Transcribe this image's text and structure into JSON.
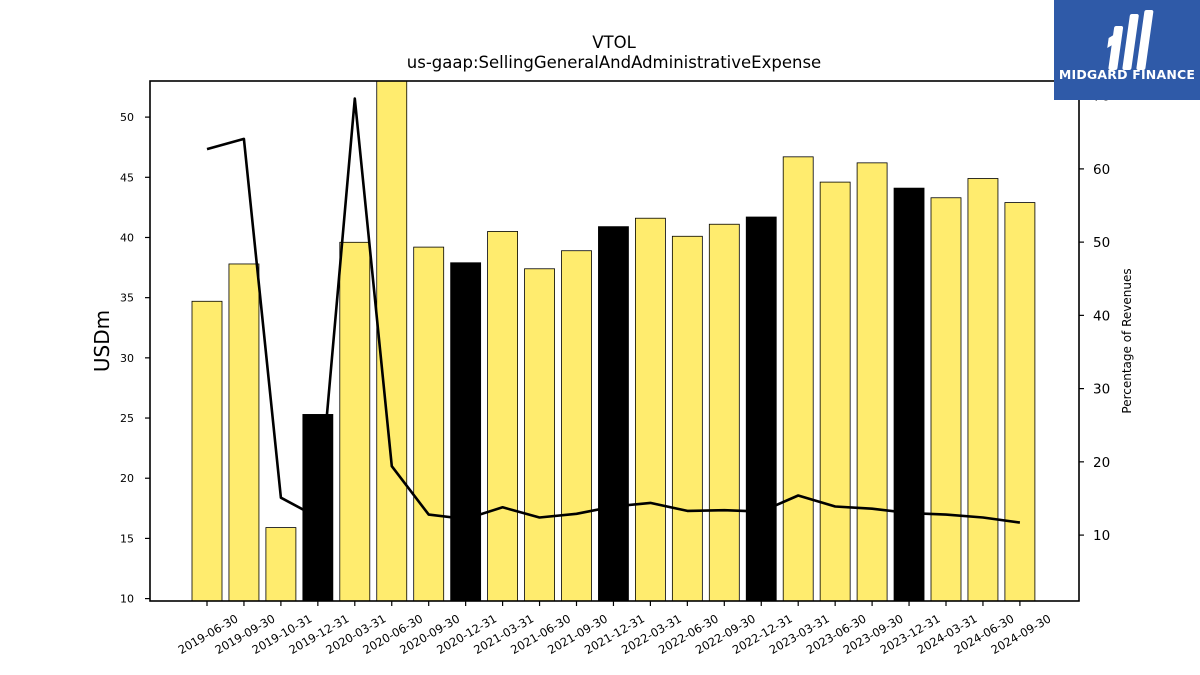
{
  "chart_data": {
    "type": "bar",
    "title": "VTOL",
    "subtitle": "us-gaap:SellingGeneralAndAdministrativeExpense",
    "ylabel": "USDm",
    "y2label": "Percentage of Revenues",
    "ylim": [
      9.8,
      53
    ],
    "y2lim": [
      1,
      72
    ],
    "yticks": [
      10,
      15,
      20,
      25,
      30,
      35,
      40,
      45,
      50
    ],
    "y2ticks": [
      10,
      20,
      30,
      40,
      50,
      60,
      70
    ],
    "categories": [
      "2019-06-30",
      "2019-09-30",
      "2019-10-31",
      "2019-12-31",
      "2020-03-31",
      "2020-06-30",
      "2020-09-30",
      "2020-12-31",
      "2021-03-31",
      "2021-06-30",
      "2021-09-30",
      "2021-12-31",
      "2022-03-31",
      "2022-06-30",
      "2022-09-30",
      "2022-12-31",
      "2023-03-31",
      "2023-06-30",
      "2023-09-30",
      "2023-12-31",
      "2024-03-31",
      "2024-06-30",
      "2024-09-30"
    ],
    "series": [
      {
        "type": "bar",
        "axis": "left",
        "values": [
          34.7,
          37.8,
          15.9,
          25.3,
          39.6,
          53.0,
          39.2,
          37.9,
          40.5,
          37.4,
          38.9,
          40.9,
          41.6,
          40.1,
          41.1,
          41.7,
          46.7,
          44.6,
          46.2,
          44.1,
          43.3,
          44.9,
          42.9
        ],
        "highlight": [
          false,
          false,
          false,
          true,
          false,
          false,
          false,
          true,
          false,
          false,
          false,
          true,
          false,
          false,
          false,
          true,
          false,
          false,
          false,
          true,
          false,
          false,
          false
        ]
      },
      {
        "type": "line",
        "axis": "right",
        "values": [
          62.7,
          64.1,
          15.1,
          12.4,
          69.6,
          19.4,
          12.8,
          12.2,
          13.8,
          12.4,
          12.9,
          13.9,
          14.4,
          13.3,
          13.4,
          13.2,
          15.4,
          13.9,
          13.6,
          13.0,
          12.8,
          12.4,
          11.7
        ]
      }
    ],
    "colors": {
      "bar": "#ffec6e",
      "bar_highlight": "#000000",
      "line": "#000000",
      "edge": "#000000"
    },
    "grid": false
  },
  "logo": {
    "text": "MIDGARD FINANCE"
  }
}
